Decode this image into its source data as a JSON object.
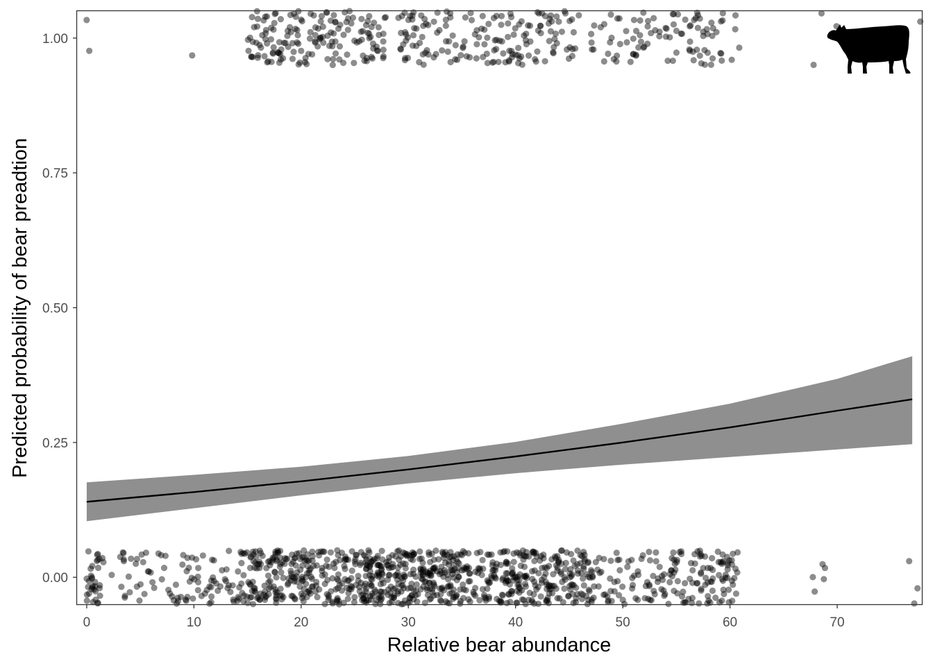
{
  "chart_data": {
    "type": "scatter",
    "xlabel": "Relative bear abundance",
    "ylabel": "Predicted probability of bear preadtion",
    "xlim": [
      -0.9,
      77.9
    ],
    "ylim": [
      -0.05,
      1.05
    ],
    "xticks": [
      0,
      10,
      20,
      30,
      40,
      50,
      60,
      70
    ],
    "yticks": [
      0.0,
      0.25,
      0.5,
      0.75,
      1.0
    ],
    "xtick_labels": [
      "0",
      "10",
      "20",
      "30",
      "40",
      "50",
      "60",
      "70"
    ],
    "ytick_labels": [
      "0.00",
      "0.25",
      "0.50",
      "0.75",
      "1.00"
    ],
    "grid": false,
    "legend": "none",
    "icon": "cow-silhouette-icon",
    "colors": {
      "points": "#000000",
      "ribbon": "#8f8f8f",
      "line": "#000000",
      "panel_border": "#333333"
    },
    "point_alpha": 0.45,
    "jitter_height": 0.05,
    "fit": {
      "x": [
        0,
        10,
        20,
        30,
        40,
        50,
        60,
        70,
        77
      ],
      "y": [
        0.14,
        0.158,
        0.178,
        0.2,
        0.224,
        0.25,
        0.278,
        0.309,
        0.33
      ],
      "lower": [
        0.104,
        0.128,
        0.152,
        0.174,
        0.193,
        0.209,
        0.223,
        0.237,
        0.247
      ],
      "upper": [
        0.176,
        0.19,
        0.205,
        0.225,
        0.251,
        0.285,
        0.322,
        0.368,
        0.41
      ]
    },
    "density_x": [
      [
        0,
        1.6,
        1.0
      ],
      [
        2,
        4,
        0.25
      ],
      [
        4,
        9,
        0.35
      ],
      [
        9,
        14,
        0.4
      ],
      [
        14,
        28,
        1.2
      ],
      [
        28,
        34,
        1.5
      ],
      [
        34,
        47,
        1.0
      ],
      [
        47,
        53,
        0.45
      ],
      [
        53,
        61,
        0.7
      ],
      [
        67.5,
        69.5,
        0.12
      ],
      [
        76.5,
        77.8,
        0.1
      ]
    ],
    "outcome_1_ranges": [
      [
        -0.8,
        0.8,
        0.08
      ],
      [
        7.8,
        10.2,
        0.05
      ],
      [
        15,
        28,
        1.0
      ],
      [
        29,
        38,
        0.8
      ],
      [
        38,
        46,
        0.7
      ],
      [
        47,
        51,
        0.35
      ],
      [
        51,
        61,
        0.6
      ],
      [
        67.5,
        70.5,
        0.08
      ],
      [
        77,
        77.8,
        0.03
      ]
    ],
    "n_zero_points": 1120,
    "n_one_points": 430
  }
}
